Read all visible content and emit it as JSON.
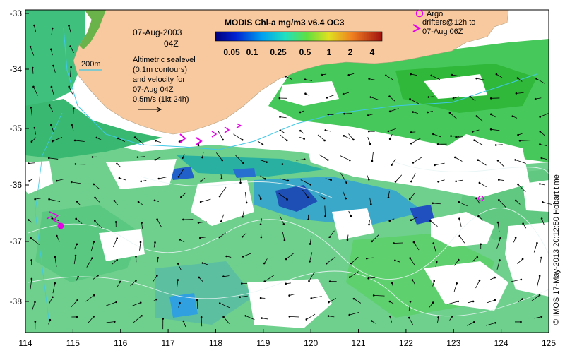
{
  "map": {
    "date": "07-Aug-2003",
    "hour": "04Z",
    "colorbar_title": "MODIS Chl-a mg/m3 v6.4 OC3",
    "colorbar_ticks": [
      "0.05",
      "0.1",
      "0.25",
      "0.5",
      "1",
      "2",
      "4"
    ],
    "contour_label": "200m",
    "sealevel_note": [
      "Altimetric sealevel",
      "(0.1m contours)",
      "and velocity for",
      "07-Aug 04Z",
      "0.5m/s (1kt 24h)"
    ],
    "argo_label": "Argo",
    "drifters_note": [
      "drifters@12h to",
      "07-Aug 06Z"
    ],
    "credit": "© IMOS 17-May-2013 20:12:50 Hobart time",
    "x_ticks": [
      "114",
      "115",
      "116",
      "117",
      "118",
      "119",
      "120",
      "121",
      "122",
      "123",
      "124",
      "125"
    ],
    "y_ticks": [
      "-33",
      "-34",
      "-35",
      "-36",
      "-37",
      "-38"
    ],
    "colors": {
      "land": "#f8c89e",
      "cloud": "#ffffff",
      "chl_low": "#1e4fb4",
      "chl_mid": "#3cc896",
      "chl_high": "#32b43c",
      "contour_200m": "#40c8e6",
      "drifter": "#e600e6"
    }
  }
}
